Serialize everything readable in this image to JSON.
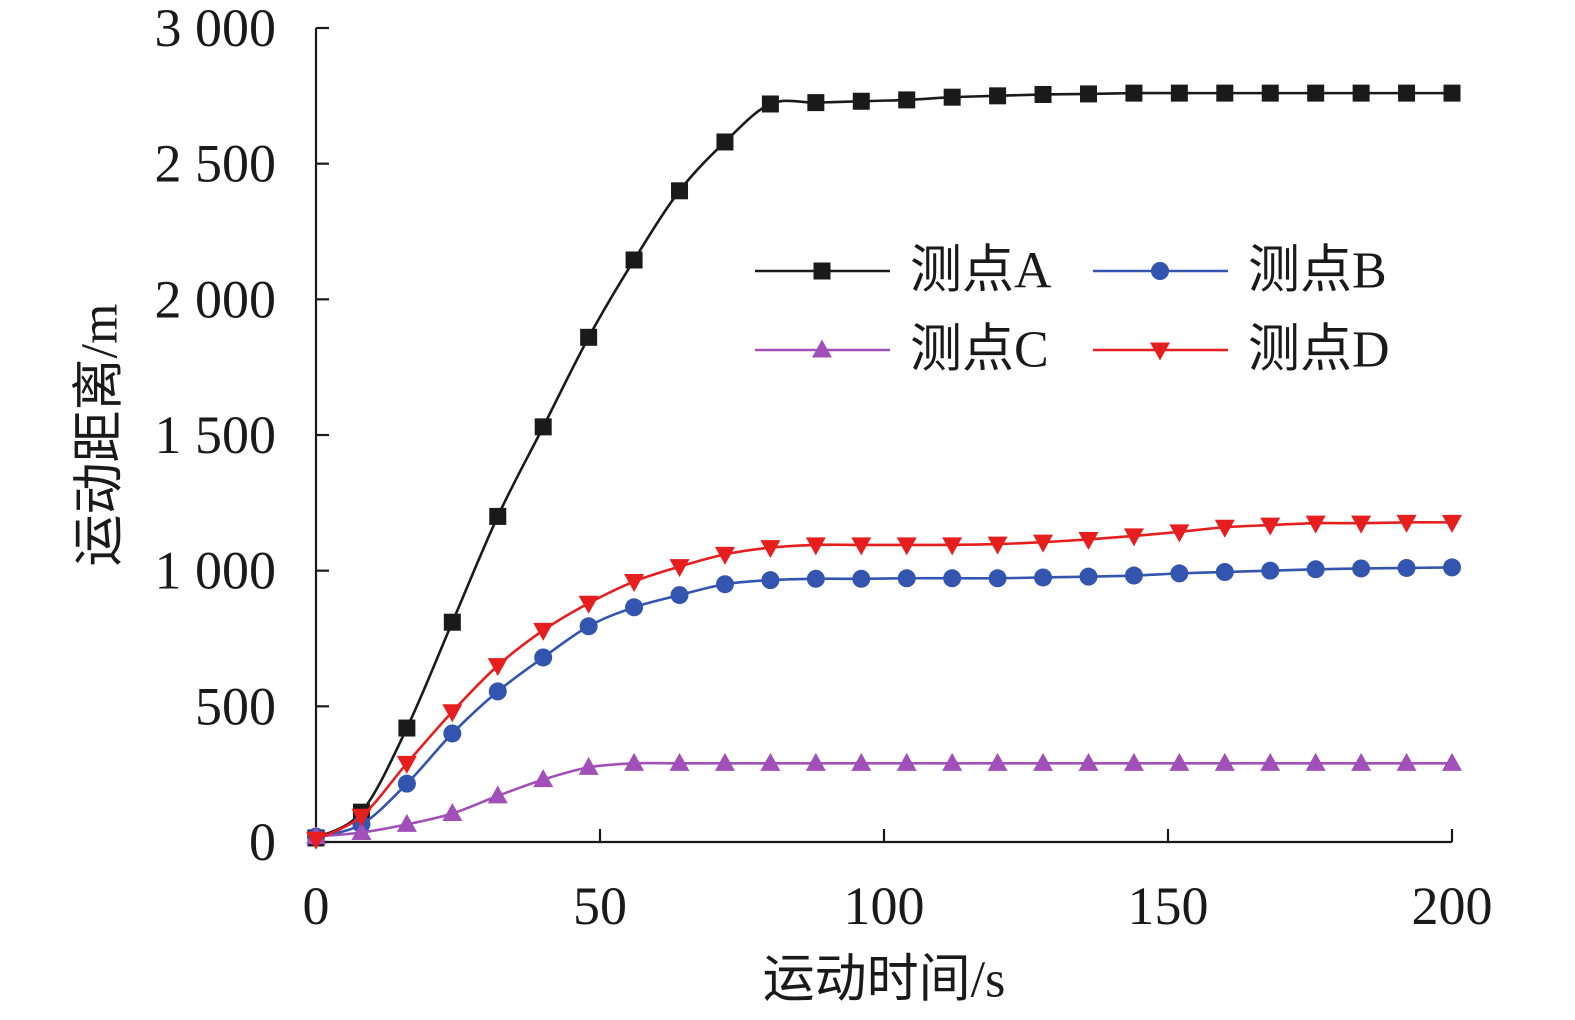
{
  "chart_data": {
    "type": "line",
    "xlabel": "运动时间/s",
    "ylabel": "运动距离/m",
    "xlim": [
      0,
      200
    ],
    "ylim": [
      0,
      3000
    ],
    "x_ticks": [
      {
        "value": 0,
        "label": "0"
      },
      {
        "value": 50,
        "label": "50"
      },
      {
        "value": 100,
        "label": "100"
      },
      {
        "value": 150,
        "label": "150"
      },
      {
        "value": 200,
        "label": "200"
      }
    ],
    "y_ticks": [
      {
        "value": 0,
        "label": "0"
      },
      {
        "value": 500,
        "label": "500"
      },
      {
        "value": 1000,
        "label": "1 000"
      },
      {
        "value": 1500,
        "label": "1 500"
      },
      {
        "value": 2000,
        "label": "2 000"
      },
      {
        "value": 2500,
        "label": "2 500"
      },
      {
        "value": 3000,
        "label": "3 000"
      }
    ],
    "grid": false,
    "legend_position": "upper-right",
    "smooth": true,
    "x": [
      0,
      8,
      16,
      24,
      32,
      40,
      48,
      56,
      64,
      72,
      80,
      88,
      96,
      104,
      112,
      120,
      128,
      136,
      144,
      152,
      160,
      168,
      176,
      184,
      192,
      200
    ],
    "series": [
      {
        "name": "测点A",
        "color": "#1a1a1a",
        "marker": "square",
        "values": [
          15,
          110,
          420,
          810,
          1200,
          1530,
          1860,
          2145,
          2400,
          2580,
          2720,
          2725,
          2730,
          2735,
          2745,
          2750,
          2755,
          2757,
          2760,
          2760,
          2760,
          2760,
          2760,
          2760,
          2760,
          2760
        ]
      },
      {
        "name": "测点B",
        "color": "#3355b0",
        "marker": "circle",
        "values": [
          20,
          65,
          215,
          400,
          555,
          680,
          795,
          865,
          910,
          950,
          965,
          970,
          970,
          972,
          972,
          972,
          975,
          978,
          982,
          990,
          995,
          1000,
          1005,
          1008,
          1010,
          1012
        ]
      },
      {
        "name": "测点C",
        "color": "#a050b8",
        "marker": "triangle-up",
        "values": [
          20,
          35,
          65,
          105,
          170,
          230,
          275,
          290,
          290,
          290,
          290,
          290,
          290,
          290,
          290,
          290,
          290,
          290,
          290,
          290,
          290,
          290,
          290,
          290,
          290,
          290
        ]
      },
      {
        "name": "测点D",
        "color": "#e61e1e",
        "marker": "triangle-down",
        "values": [
          10,
          95,
          290,
          480,
          650,
          780,
          880,
          960,
          1015,
          1060,
          1085,
          1095,
          1095,
          1095,
          1095,
          1098,
          1105,
          1115,
          1128,
          1143,
          1160,
          1168,
          1175,
          1175,
          1178,
          1178
        ]
      }
    ]
  }
}
